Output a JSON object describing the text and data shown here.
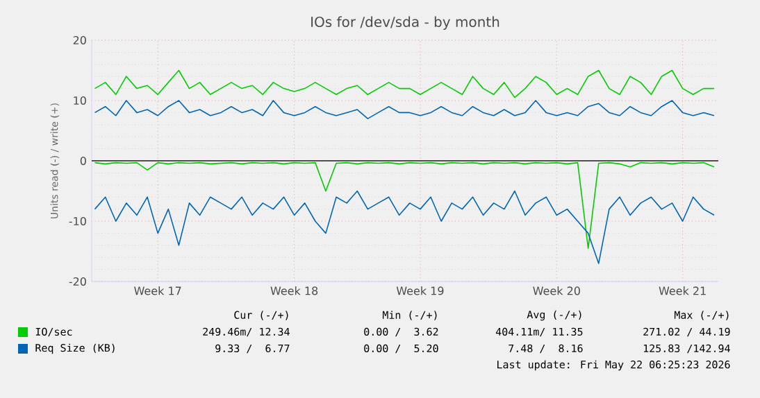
{
  "chart_data": {
    "type": "line",
    "title": "IOs for /dev/sda - by month",
    "ylabel": "Units read (-) / write (+)",
    "categories": [
      null,
      null,
      null,
      null,
      null,
      null,
      "Week 17",
      null,
      null,
      null,
      null,
      null,
      null,
      null,
      null,
      null,
      null,
      null,
      null,
      "Week 18",
      null,
      null,
      null,
      null,
      null,
      null,
      null,
      null,
      null,
      null,
      null,
      "Week 19",
      null,
      null,
      null,
      null,
      null,
      null,
      null,
      null,
      null,
      null,
      null,
      null,
      "Week 20",
      null,
      null,
      null,
      null,
      null,
      null,
      null,
      null,
      null,
      null,
      null,
      "Week 21",
      null,
      null,
      null
    ],
    "ylim": [
      -20,
      20
    ],
    "yticks": [
      -20,
      -10,
      0,
      10,
      20
    ],
    "grid": true,
    "legend": "bottom",
    "series": [
      {
        "name": "IO/sec",
        "color": "#00cc00",
        "values": [
          12,
          13,
          11,
          14,
          12,
          12.5,
          11,
          13,
          15,
          12,
          13,
          11,
          12,
          13,
          12,
          12.5,
          11,
          13,
          12,
          11.5,
          12,
          13,
          12,
          11,
          12,
          12.5,
          11,
          12,
          13,
          12,
          12,
          11,
          12,
          13,
          12,
          11,
          14,
          12,
          11,
          13,
          10.5,
          12,
          14,
          13,
          11,
          12,
          11,
          14,
          15,
          12,
          11,
          14,
          13,
          11,
          14,
          15,
          12,
          11,
          12,
          12
        ]
      },
      {
        "color": "#00cc00",
        "values": [
          -0.3,
          -0.5,
          -0.3,
          -0.4,
          -0.3,
          -1.5,
          -0.3,
          -0.5,
          -0.3,
          -0.4,
          -0.3,
          -0.5,
          -0.4,
          -0.3,
          -0.5,
          -0.3,
          -0.4,
          -0.3,
          -0.5,
          -0.3,
          -0.4,
          -0.3,
          -5,
          -0.4,
          -0.3,
          -0.5,
          -0.3,
          -0.4,
          -0.3,
          -0.5,
          -0.3,
          -0.4,
          -0.3,
          -0.5,
          -0.3,
          -0.4,
          -0.3,
          -0.5,
          -0.3,
          -0.4,
          -0.3,
          -0.5,
          -0.3,
          -0.4,
          -0.3,
          -0.5,
          -0.3,
          -14.5,
          -0.4,
          -0.3,
          -0.5,
          -1,
          -0.3,
          -0.4,
          -0.3,
          -0.5,
          -0.3,
          -0.4,
          -0.3,
          -1
        ]
      },
      {
        "name": "Req Size (KB)",
        "color": "#0066b3",
        "values": [
          8,
          9,
          7.5,
          10,
          8,
          8.5,
          7.5,
          9,
          10,
          8,
          8.5,
          7.5,
          8,
          9,
          8,
          8.5,
          7.5,
          10,
          8,
          7.5,
          8,
          9,
          8,
          7.5,
          8,
          8.5,
          7,
          8,
          9,
          8,
          8,
          7.5,
          8,
          9,
          8,
          7.5,
          9,
          8,
          7.5,
          8.5,
          7.5,
          8,
          10,
          8,
          7.5,
          8,
          7.5,
          9,
          9.5,
          8,
          7.5,
          9,
          8,
          7.5,
          9,
          10,
          8,
          7.5,
          8,
          7.5
        ]
      },
      {
        "color": "#0066b3",
        "values": [
          -8,
          -6,
          -10,
          -7,
          -9,
          -6,
          -12,
          -8,
          -14,
          -7,
          -9,
          -6,
          -7,
          -8,
          -6,
          -9,
          -7,
          -8,
          -6,
          -9,
          -7,
          -10,
          -12,
          -6,
          -7,
          -5,
          -8,
          -7,
          -6,
          -9,
          -7,
          -8,
          -6,
          -10,
          -7,
          -8,
          -6,
          -9,
          -7,
          -8,
          -5,
          -9,
          -7,
          -6,
          -9,
          -8,
          -10,
          -12,
          -17,
          -8,
          -6,
          -9,
          -7,
          -6,
          -8,
          -7,
          -10,
          -6,
          -8,
          -9
        ]
      }
    ],
    "ref_lines": [
      {
        "axis": "y",
        "value": 0,
        "color": "#000000"
      }
    ],
    "annotations": [
      "Cur (-/+)",
      "Min (-/+)",
      "Avg (-/+)",
      "Max (-/+)",
      "249.46m/ 12.34",
      "0.00 /  3.62",
      "404.11m/ 11.35",
      "271.02 / 44.19",
      "9.33 /  6.77",
      "0.00 /  5.20",
      "7.48 /  8.16",
      "125.83 /142.94",
      "Last update: Fri May 22 06:25:23 2026"
    ]
  }
}
